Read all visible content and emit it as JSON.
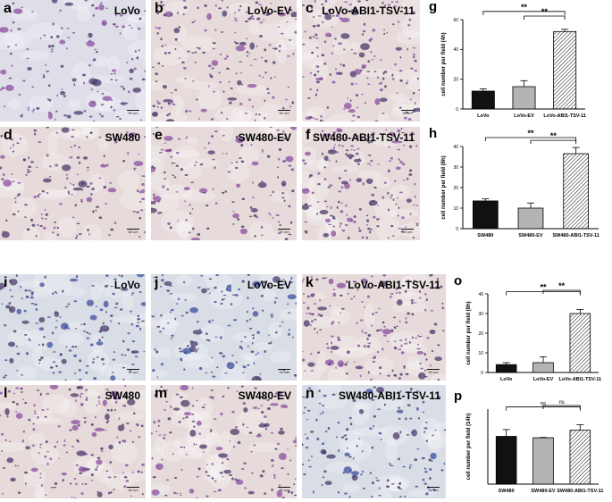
{
  "colors": {
    "giemsa_lilac_bg": "#dfdde8",
    "giemsa_pink_bg": "#e6dada",
    "giemsa_blue_bg": "#d9dde6",
    "cell_purple": "#8a4fa0",
    "cell_dark": "#4a3a6a",
    "cell_blue": "#3c4f9c",
    "bar_black": "#111111",
    "bar_gray": "#b4b4b4"
  },
  "panels": [
    {
      "letter": "a",
      "title": "LoVo",
      "scale": "50 um",
      "tone": "lilac"
    },
    {
      "letter": "b",
      "title": "LoVo-EV",
      "scale": "50 um",
      "tone": "pink"
    },
    {
      "letter": "c",
      "title": "LoVo-ABI1-TSV-11",
      "scale": "50 um",
      "tone": "pink"
    },
    {
      "letter": "d",
      "title": "SW480",
      "scale": "50 um",
      "tone": "pink"
    },
    {
      "letter": "e",
      "title": "SW480-EV",
      "scale": "50 um",
      "tone": "pink"
    },
    {
      "letter": "f",
      "title": "SW480-ABI1-TSV-11",
      "scale": "50 um",
      "tone": "pink"
    },
    {
      "letter": "i",
      "title": "LoVo",
      "scale": "50 um",
      "tone": "blue"
    },
    {
      "letter": "j",
      "title": "LoVo-EV",
      "scale": "50 um",
      "tone": "blue"
    },
    {
      "letter": "k",
      "title": "LoVo-ABI1-TSV-11",
      "scale": "50 um",
      "tone": "pink"
    },
    {
      "letter": "l",
      "title": "SW480",
      "scale": "50 um",
      "tone": "pink"
    },
    {
      "letter": "m",
      "title": "SW480-EV",
      "scale": "50 um",
      "tone": "pink"
    },
    {
      "letter": "n",
      "title": "SW480-ABI1-TSV-11",
      "scale": "50 um",
      "tone": "blue"
    }
  ],
  "chart_data": [
    {
      "letter": "g",
      "type": "bar",
      "categories": [
        "LoVo",
        "LoVo-EV",
        "LoVo-ABI1-TSV-11"
      ],
      "values": [
        12,
        15,
        52
      ],
      "errors": [
        1.5,
        4,
        1.5
      ],
      "ylabel": "cell number per field (4h)",
      "ylim": [
        0,
        60
      ],
      "yticks": [
        0,
        20,
        40,
        60
      ],
      "fills": [
        "solid_black",
        "solid_gray",
        "hatched"
      ],
      "annotations": [
        {
          "from": 0,
          "to": 2,
          "label": "**"
        },
        {
          "from": 1,
          "to": 2,
          "label": "**"
        }
      ]
    },
    {
      "letter": "h",
      "type": "bar",
      "categories": [
        "SW480",
        "SW480-EV",
        "SW480-ABI1-TSV-11"
      ],
      "values": [
        13.5,
        10,
        36.5
      ],
      "errors": [
        1,
        2.5,
        3
      ],
      "ylabel": "cell number per field (8h)",
      "ylim": [
        0,
        40
      ],
      "yticks": [
        0,
        10,
        20,
        30,
        40
      ],
      "fills": [
        "solid_black",
        "solid_gray",
        "hatched"
      ],
      "annotations": [
        {
          "from": 0,
          "to": 2,
          "label": "**"
        },
        {
          "from": 1,
          "to": 2,
          "label": "**"
        }
      ]
    },
    {
      "letter": "o",
      "type": "bar",
      "categories": [
        "LoVo",
        "LoVo-EV",
        "LoVo-ABI1-TSV-11"
      ],
      "values": [
        4,
        5,
        30
      ],
      "errors": [
        1,
        3,
        2
      ],
      "ylabel": "cell number per field (8h)",
      "ylim": [
        0,
        40
      ],
      "yticks": [
        0,
        10,
        20,
        30,
        40
      ],
      "fills": [
        "solid_black",
        "solid_gray",
        "hatched"
      ],
      "annotations": [
        {
          "from": 0,
          "to": 2,
          "label": "**"
        },
        {
          "from": 1,
          "to": 2,
          "label": "**"
        }
      ]
    },
    {
      "letter": "p",
      "type": "bar",
      "categories": [
        "SW480",
        "SW480-EV",
        "SW480-ABI1-TSV-11"
      ],
      "values": [
        70,
        68,
        79
      ],
      "errors": [
        10,
        0.5,
        8
      ],
      "ylabel": "cell number per field (14h)",
      "ylim": [
        0,
        110
      ],
      "yticks": [],
      "fills": [
        "solid_black",
        "solid_gray",
        "hatched"
      ],
      "annotations": [
        {
          "from": 0,
          "to": 2,
          "label": "ns"
        },
        {
          "from": 1,
          "to": 2,
          "label": "ns"
        }
      ]
    }
  ]
}
